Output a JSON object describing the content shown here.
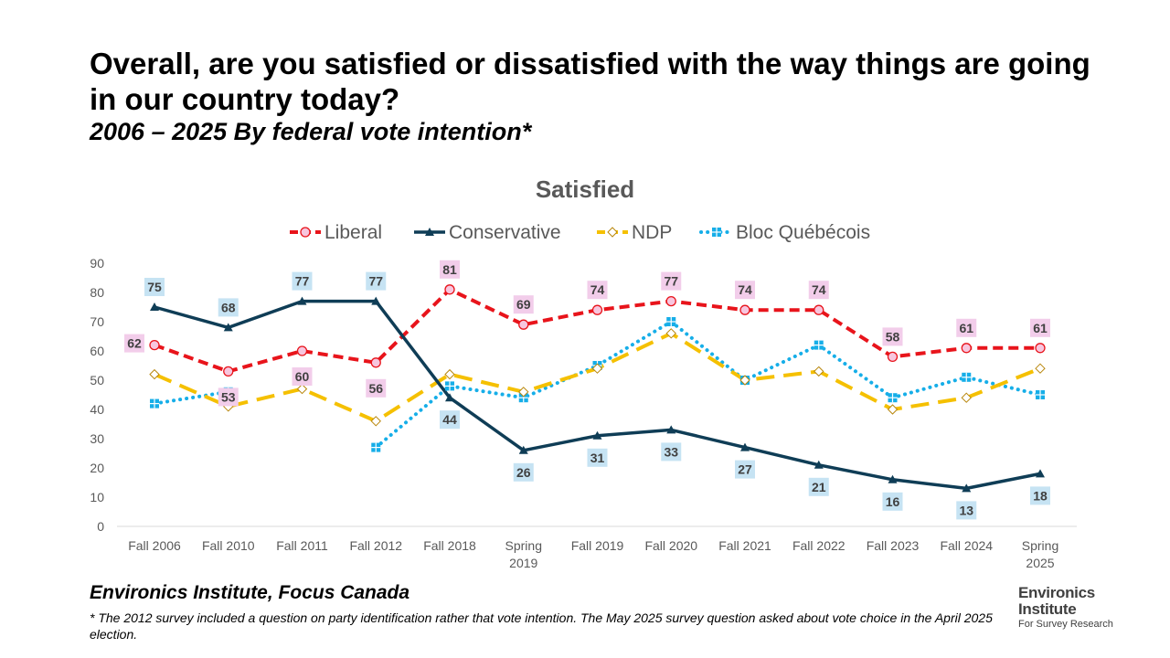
{
  "heading": {
    "title": "Overall, are you satisfied or dissatisfied with the way things are going in our country today?",
    "subtitle": "2006 – 2025 By federal vote intention*"
  },
  "source": "Environics Institute, Focus Canada",
  "footnote": "* The 2012 survey included a question on party identification rather that vote intention. The May 2025 survey question asked about vote choice in the April 2025 election.",
  "logo": {
    "line1": "Environics",
    "line2": "Institute",
    "line3": "For Survey Research"
  },
  "chart_data": {
    "type": "line",
    "title": "Satisfied",
    "categories": [
      "Fall 2006",
      "Fall 2010",
      "Fall 2011",
      "Fall 2012",
      "Fall 2018",
      "Spring 2019",
      "Fall 2019",
      "Fall 2020",
      "Fall 2021",
      "Fall 2022",
      "Fall 2023",
      "Fall 2024",
      "Spring 2025"
    ],
    "ylim": [
      0,
      90
    ],
    "yticks": [
      0,
      10,
      20,
      30,
      40,
      50,
      60,
      70,
      80,
      90
    ],
    "grid": false,
    "legend_position": "top",
    "series": [
      {
        "name": "Liberal",
        "color": "#e8141b",
        "marker": "circle",
        "style": "dashed",
        "values": [
          62,
          53,
          60,
          56,
          81,
          69,
          74,
          77,
          74,
          74,
          58,
          61,
          61
        ],
        "labels_shown": true,
        "label_bg": "#f2cdea"
      },
      {
        "name": "Conservative",
        "color": "#0f3d56",
        "marker": "triangle",
        "style": "solid",
        "values": [
          75,
          68,
          77,
          77,
          44,
          26,
          31,
          33,
          27,
          21,
          16,
          13,
          18
        ],
        "labels_shown": true,
        "label_bg": "#c6e3f3"
      },
      {
        "name": "NDP",
        "color": "#f5c000",
        "marker": "diamond",
        "style": "long-dash",
        "values": [
          52,
          41,
          47,
          36,
          52,
          46,
          54,
          66,
          50,
          53,
          40,
          44,
          54
        ],
        "labels_shown": false
      },
      {
        "name": "Bloc Québécois",
        "color": "#16aee8",
        "marker": "square",
        "style": "dotted",
        "values": [
          42,
          46,
          null,
          27,
          48,
          44,
          55,
          70,
          50,
          62,
          44,
          51,
          45
        ],
        "labels_shown": false
      }
    ]
  }
}
